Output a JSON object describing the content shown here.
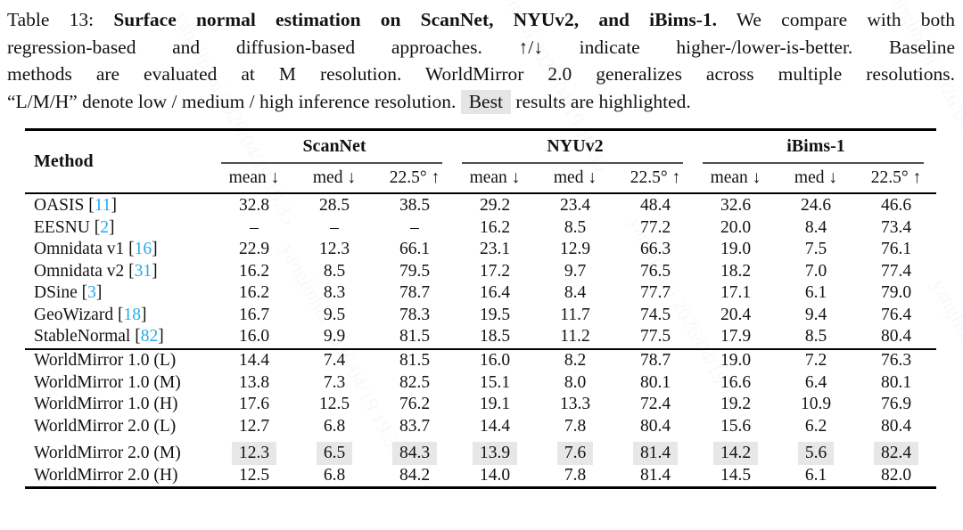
{
  "caption": {
    "line1_pre": "Table 13: ",
    "line1_bold": "Surface normal estimation on ScanNet, NYUv2, and iBims-1.",
    "line1_post": " We compare with both",
    "line2": "regression-based and diffusion-based approaches. ↑/↓ indicate higher-/lower-is-better. Baseline",
    "line3": "methods are evaluated at M resolution. WorldMirror 2.0 generalizes across multiple resolutions.",
    "line4_pre": "“L/M/H” denote low / medium / high inference resolution. ",
    "line4_best": "Best",
    "line4_post": " results are highlighted."
  },
  "watermark": {
    "text": "yanglinhui  2026/04/19  19:35"
  },
  "table": {
    "method_header": "Method",
    "groups": [
      {
        "label": "ScanNet"
      },
      {
        "label": "NYUv2"
      },
      {
        "label": "iBims-1"
      }
    ],
    "subheaders": [
      "mean ↓",
      "med ↓",
      "22.5° ↑"
    ],
    "citation_color": "#25ACEA",
    "highlight_color": "#e7e7e7",
    "sections": [
      {
        "rows": [
          {
            "method": "OASIS",
            "cite": "11",
            "highlight": false,
            "values": [
              "32.8",
              "28.5",
              "38.5",
              "29.2",
              "23.4",
              "48.4",
              "32.6",
              "24.6",
              "46.6"
            ]
          },
          {
            "method": "EESNU",
            "cite": "2",
            "highlight": false,
            "values": [
              "–",
              "–",
              "–",
              "16.2",
              "8.5",
              "77.2",
              "20.0",
              "8.4",
              "73.4"
            ]
          },
          {
            "method": "Omnidata v1",
            "cite": "16",
            "highlight": false,
            "values": [
              "22.9",
              "12.3",
              "66.1",
              "23.1",
              "12.9",
              "66.3",
              "19.0",
              "7.5",
              "76.1"
            ]
          },
          {
            "method": "Omnidata v2",
            "cite": "31",
            "highlight": false,
            "values": [
              "16.2",
              "8.5",
              "79.5",
              "17.2",
              "9.7",
              "76.5",
              "18.2",
              "7.0",
              "77.4"
            ]
          },
          {
            "method": "DSine",
            "cite": "3",
            "highlight": false,
            "values": [
              "16.2",
              "8.3",
              "78.7",
              "16.4",
              "8.4",
              "77.7",
              "17.1",
              "6.1",
              "79.0"
            ]
          },
          {
            "method": "GeoWizard",
            "cite": "18",
            "highlight": false,
            "values": [
              "16.7",
              "9.5",
              "78.3",
              "19.5",
              "11.7",
              "74.5",
              "20.4",
              "9.4",
              "76.4"
            ]
          },
          {
            "method": "StableNormal",
            "cite": "82",
            "highlight": false,
            "values": [
              "16.0",
              "9.9",
              "81.5",
              "18.5",
              "11.2",
              "77.5",
              "17.9",
              "8.5",
              "80.4"
            ]
          }
        ]
      },
      {
        "rows": [
          {
            "method": "WorldMirror 1.0 (L)",
            "cite": null,
            "highlight": false,
            "values": [
              "14.4",
              "7.4",
              "81.5",
              "16.0",
              "8.2",
              "78.7",
              "19.0",
              "7.2",
              "76.3"
            ]
          },
          {
            "method": "WorldMirror 1.0 (M)",
            "cite": null,
            "highlight": false,
            "values": [
              "13.8",
              "7.3",
              "82.5",
              "15.1",
              "8.0",
              "80.1",
              "16.6",
              "6.4",
              "80.1"
            ]
          },
          {
            "method": "WorldMirror 1.0 (H)",
            "cite": null,
            "highlight": false,
            "values": [
              "17.6",
              "12.5",
              "76.2",
              "19.1",
              "13.3",
              "72.4",
              "19.2",
              "10.9",
              "76.9"
            ]
          },
          {
            "method": "WorldMirror 2.0 (L)",
            "cite": null,
            "highlight": false,
            "values": [
              "12.7",
              "6.8",
              "83.7",
              "14.4",
              "7.8",
              "80.4",
              "15.6",
              "6.2",
              "80.4"
            ]
          }
        ]
      },
      {
        "rows": [
          {
            "method": "WorldMirror 2.0 (M)",
            "cite": null,
            "highlight": true,
            "values": [
              "12.3",
              "6.5",
              "84.3",
              "13.9",
              "7.6",
              "81.4",
              "14.2",
              "5.6",
              "82.4"
            ]
          },
          {
            "method": "WorldMirror 2.0 (H)",
            "cite": null,
            "highlight": false,
            "values": [
              "12.5",
              "6.8",
              "84.2",
              "14.0",
              "7.8",
              "81.4",
              "14.5",
              "6.1",
              "82.0"
            ]
          }
        ]
      }
    ]
  }
}
